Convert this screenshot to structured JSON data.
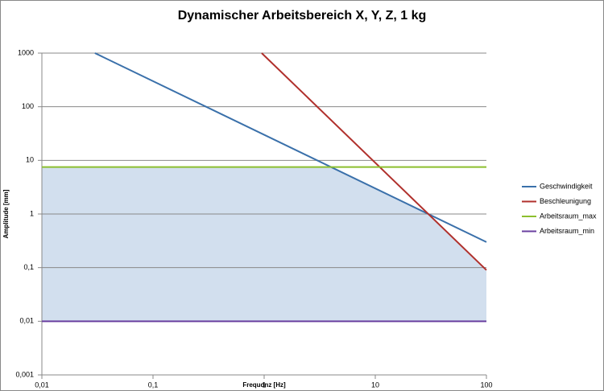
{
  "chart_data": {
    "type": "line",
    "title": "Dynamischer Arbeitsbereich X, Y, Z, 1 kg",
    "x_label": "Frequdnz [Hz]",
    "y_label": "Amplitude [mm]",
    "log_x": true,
    "log_y": true,
    "grid": true,
    "legend": "right",
    "fill_color": "#d2dfee",
    "series": [
      {
        "name": "Geschwindigkeit",
        "color": "#3a70aa",
        "x": [
          0.03,
          100
        ],
        "values": [
          1000,
          0.3
        ]
      },
      {
        "name": "Beschleunigung",
        "color": "#b0302c",
        "x": [
          0.95,
          100
        ],
        "values": [
          1000,
          0.09
        ]
      },
      {
        "name": "Arbeitsraum_max",
        "color": "#8cbf2e",
        "x": [
          0.01,
          100
        ],
        "values": [
          7.5,
          7.5
        ]
      },
      {
        "name": "Arbeitsraum_min",
        "color": "#6a3fa0",
        "x": [
          0.01,
          100
        ],
        "values": [
          0.01,
          0.01
        ]
      }
    ],
    "xlim": [
      0.01,
      100
    ],
    "xticks": [
      {
        "value": 0.01,
        "label": "0,01"
      },
      {
        "value": 0.1,
        "label": "0,1"
      },
      1,
      10,
      100
    ],
    "ylim": [
      0.001,
      1000
    ],
    "yticks": [
      {
        "value": 0.001,
        "label": "0,001"
      },
      {
        "value": 0.01,
        "label": "0,01"
      },
      {
        "value": 0.1,
        "label": "0,1"
      },
      1,
      10,
      100,
      1000
    ]
  }
}
